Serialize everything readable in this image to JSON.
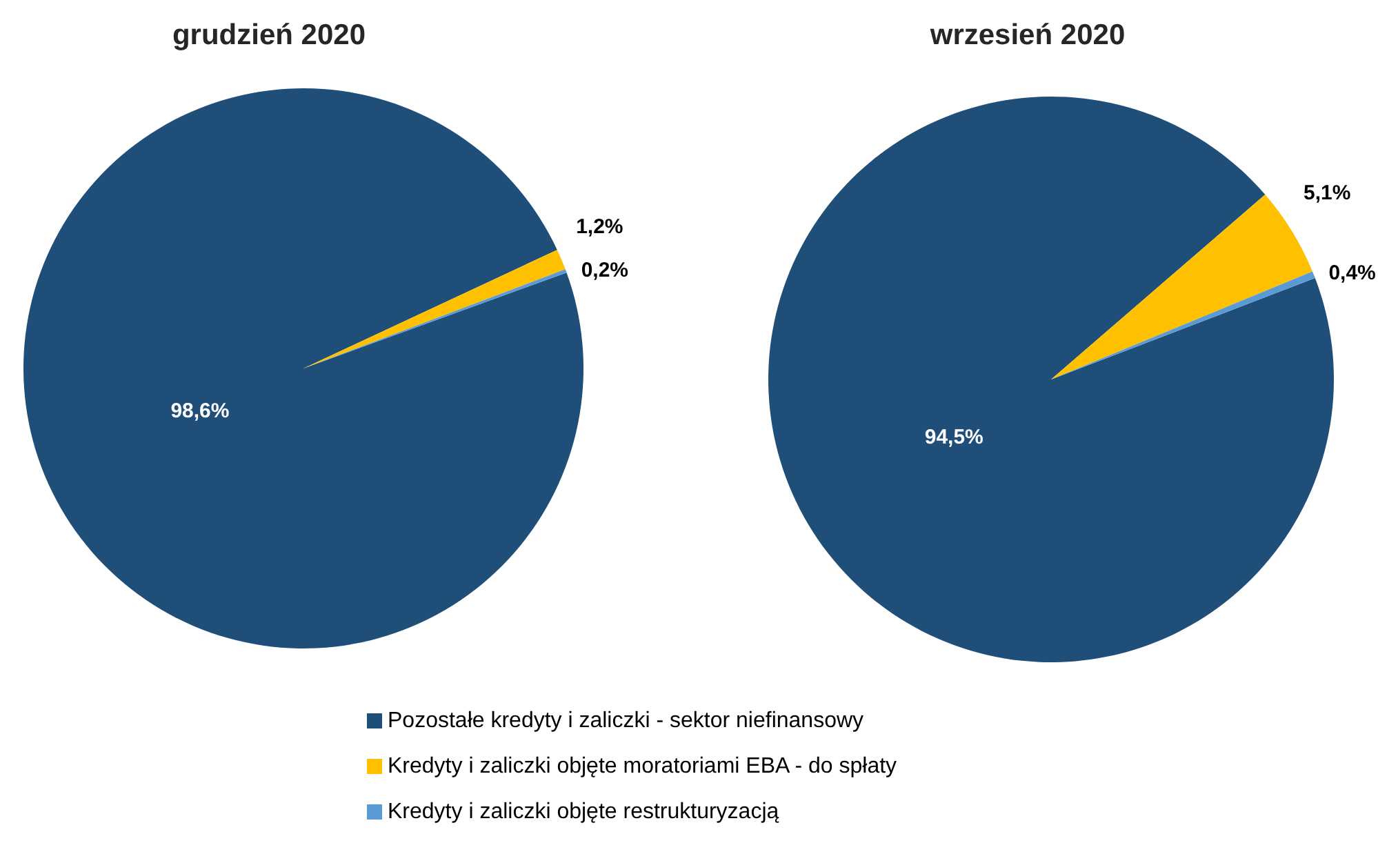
{
  "chart_data": [
    {
      "type": "pie",
      "title": "grudzień 2020",
      "categories": [
        "Pozostałe kredyty i zaliczki - sektor niefinansowy",
        "Kredyty i zaliczki objęte moratoriami EBA - do spłaty",
        "Kredyty i zaliczki objęte restrukturyzacją"
      ],
      "values": [
        98.6,
        1.2,
        0.2
      ],
      "value_labels": [
        "98,6%",
        "1,2%",
        "0,2%"
      ],
      "colors": [
        "#1f4e79",
        "#ffc000",
        "#5b9bd5"
      ],
      "legend": "bottom"
    },
    {
      "type": "pie",
      "title": "wrzesień 2020",
      "categories": [
        null,
        null,
        null
      ],
      "values": [
        94.5,
        5.1,
        0.4
      ],
      "value_labels": [
        "94,5%",
        "5,1%",
        "0,4%"
      ],
      "colors": [
        "#1f4e79",
        "#ffc000",
        "#5b9bd5"
      ]
    }
  ]
}
